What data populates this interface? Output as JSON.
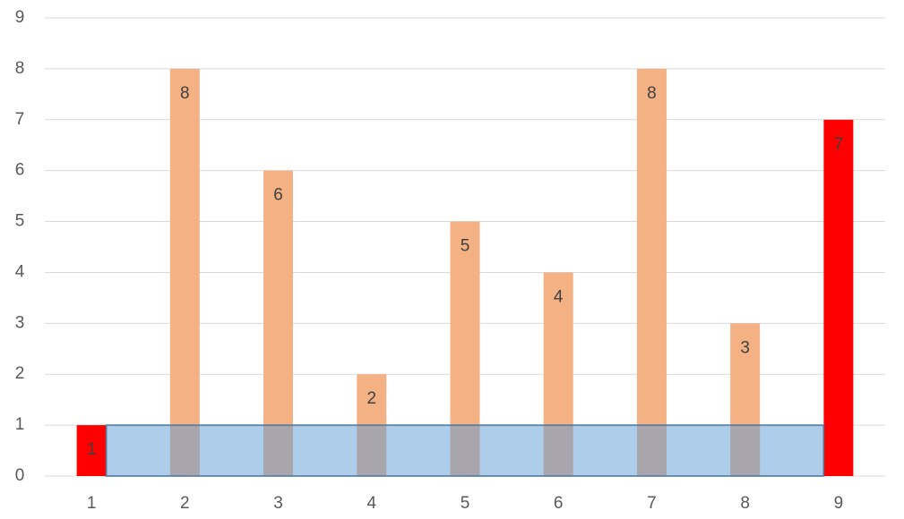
{
  "chart_data": {
    "type": "bar",
    "categories": [
      "1",
      "2",
      "3",
      "4",
      "5",
      "6",
      "7",
      "8",
      "9"
    ],
    "values": [
      1,
      8,
      6,
      2,
      5,
      4,
      8,
      3,
      7
    ],
    "colors": [
      "#ff0000",
      "#f4b183",
      "#f4b183",
      "#f4b183",
      "#f4b183",
      "#f4b183",
      "#f4b183",
      "#f4b183",
      "#ff0000"
    ],
    "ylim": [
      0,
      9
    ],
    "yticks": [
      0,
      1,
      2,
      3,
      4,
      5,
      6,
      7,
      8,
      9
    ],
    "grid": true
  }
}
